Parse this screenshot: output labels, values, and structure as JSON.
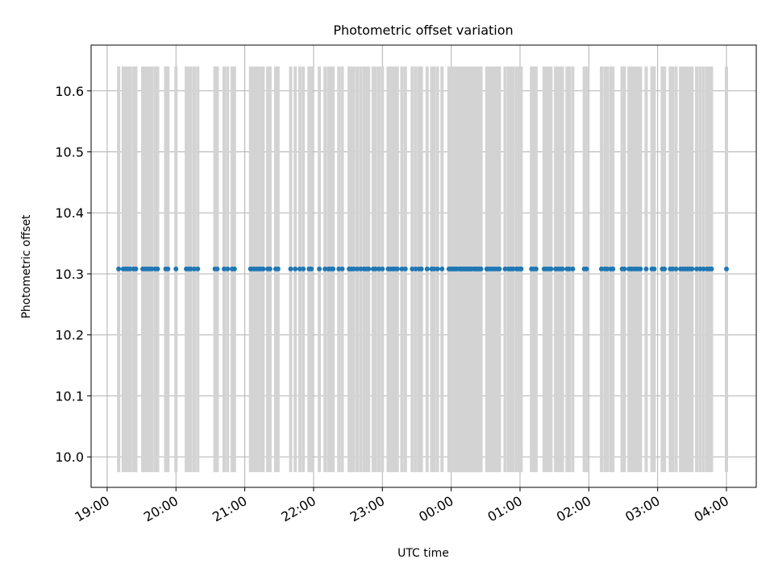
{
  "chart_data": {
    "type": "scatter",
    "title": "Photometric offset variation",
    "xlabel": "UTC time",
    "ylabel": "Photometric offset",
    "xlim": [
      "18:46",
      "04:26"
    ],
    "ylim": [
      9.95,
      10.675
    ],
    "yticks": [
      10.0,
      10.1,
      10.2,
      10.3,
      10.4,
      10.5,
      10.6
    ],
    "ytick_labels": [
      "10.0",
      "10.1",
      "10.2",
      "10.3",
      "10.4",
      "10.5",
      "10.6"
    ],
    "xticks": [
      "19:00",
      "20:00",
      "21:00",
      "22:00",
      "23:00",
      "00:00",
      "01:00",
      "02:00",
      "03:00",
      "04:00"
    ],
    "grid": true,
    "marker_color": "#1f77b4",
    "errorbar_color": "#d3d3d3",
    "errorbar_range": [
      9.975,
      10.64
    ],
    "y_value": 10.308,
    "series": [
      {
        "times": [
          "19:10",
          "19:14",
          "19:16",
          "19:18",
          "19:20",
          "19:23",
          "19:25",
          "19:31",
          "19:33",
          "19:35",
          "19:37",
          "19:39",
          "19:42",
          "19:44",
          "19:51",
          "19:53",
          "20:00",
          "20:09",
          "20:11",
          "20:13",
          "20:16",
          "20:19",
          "20:34",
          "20:36",
          "20:42",
          "20:45",
          "20:49",
          "20:51",
          "21:05",
          "21:06",
          "21:08",
          "21:10",
          "21:12",
          "21:14",
          "21:16",
          "21:20",
          "21:22",
          "21:27",
          "21:29",
          "21:40",
          "21:44",
          "21:48",
          "21:51",
          "21:56",
          "21:58",
          "22:05",
          "22:10",
          "22:13",
          "22:15",
          "22:17",
          "22:22",
          "22:25",
          "22:31",
          "22:33",
          "22:35",
          "22:38",
          "22:41",
          "22:44",
          "22:46",
          "22:48",
          "22:52",
          "22:54",
          "22:57",
          "23:00",
          "23:05",
          "23:07",
          "23:09",
          "23:11",
          "23:13",
          "23:17",
          "23:20",
          "23:26",
          "23:29",
          "23:32",
          "23:34",
          "23:39",
          "23:43",
          "23:45",
          "23:48",
          "23:52",
          "23:58",
          "23:59",
          "00:00",
          "00:01",
          "00:02",
          "00:03",
          "00:04",
          "00:05",
          "00:07",
          "00:08",
          "00:09",
          "00:10",
          "00:11",
          "00:12",
          "00:13",
          "00:14",
          "00:15",
          "00:16",
          "00:17",
          "00:18",
          "00:20",
          "00:21",
          "00:22",
          "00:23",
          "00:24",
          "00:25",
          "00:26",
          "00:31",
          "00:32",
          "00:34",
          "00:36",
          "00:38",
          "00:40",
          "00:42",
          "00:47",
          "00:50",
          "00:52",
          "00:54",
          "00:57",
          "00:58",
          "01:00",
          "01:01",
          "01:10",
          "01:12",
          "01:14",
          "01:21",
          "01:23",
          "01:25",
          "01:27",
          "01:31",
          "01:33",
          "01:35",
          "01:37",
          "01:41",
          "01:43",
          "01:46",
          "01:56",
          "01:58",
          "02:11",
          "02:14",
          "02:16",
          "02:19",
          "02:21",
          "02:29",
          "02:31",
          "02:35",
          "02:37",
          "02:39",
          "02:41",
          "02:43",
          "02:45",
          "02:50",
          "02:55",
          "02:57",
          "03:04",
          "03:06",
          "03:11",
          "03:13",
          "03:16",
          "03:20",
          "03:22",
          "03:24",
          "03:26",
          "03:28",
          "03:30",
          "03:34",
          "03:37",
          "03:40",
          "03:43",
          "03:45",
          "03:47",
          "04:00"
        ]
      }
    ]
  }
}
